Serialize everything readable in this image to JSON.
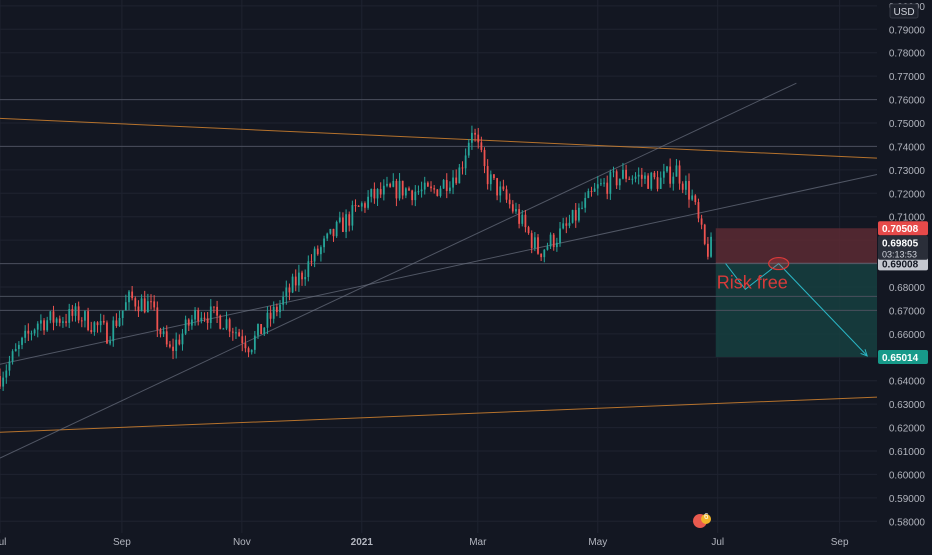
{
  "colors": {
    "background": "#131722",
    "grid": "#1f2330",
    "axis_text": "#b2b5be",
    "up_candle": "#26a69a",
    "down_candle": "#ef5350",
    "trendline_orange": "#c77c2e",
    "trendline_gray": "#6b7180",
    "horizontal_level": "#4a4f5c",
    "stop_zone": "#5c2a33",
    "target_zone": "#16403f",
    "projection_arrow": "#2bb5c4",
    "annotation_red": "#d83a3a"
  },
  "currency_label": "USD",
  "chart_data": {
    "type": "candlestick",
    "title": "",
    "xlabel": "",
    "ylabel": "",
    "ylim": [
      0.575,
      0.8025
    ],
    "y_ticks": [
      "0.58000",
      "0.59000",
      "0.60000",
      "0.61000",
      "0.62000",
      "0.63000",
      "0.64000",
      "0.65000",
      "0.66000",
      "0.67000",
      "0.68000",
      "0.69000",
      "0.70000",
      "0.71000",
      "0.72000",
      "0.73000",
      "0.74000",
      "0.75000",
      "0.76000",
      "0.77000",
      "0.78000",
      "0.79000",
      "0.80000"
    ],
    "x_ticks": [
      {
        "label": "Jul",
        "date": "2020-07-01",
        "bold": false
      },
      {
        "label": "Sep",
        "date": "2020-09-01",
        "bold": false
      },
      {
        "label": "Nov",
        "date": "2020-11-01",
        "bold": false
      },
      {
        "label": "2021",
        "date": "2021-01-01",
        "bold": true
      },
      {
        "label": "Mar",
        "date": "2021-03-01",
        "bold": false
      },
      {
        "label": "May",
        "date": "2021-05-01",
        "bold": false
      },
      {
        "label": "Jul",
        "date": "2021-07-01",
        "bold": false
      },
      {
        "label": "Sep",
        "date": "2021-09-01",
        "bold": false
      }
    ],
    "x_range": [
      "2020-07-01",
      "2021-09-20"
    ],
    "price_path": [
      [
        "2020-07-01",
        0.642
      ],
      [
        "2020-07-20",
        0.665
      ],
      [
        "2020-08-10",
        0.668
      ],
      [
        "2020-08-25",
        0.66
      ],
      [
        "2020-09-05",
        0.675
      ],
      [
        "2020-09-15",
        0.672
      ],
      [
        "2020-09-25",
        0.652
      ],
      [
        "2020-10-10",
        0.67
      ],
      [
        "2020-10-25",
        0.665
      ],
      [
        "2020-11-05",
        0.655
      ],
      [
        "2020-11-20",
        0.672
      ],
      [
        "2020-12-05",
        0.69
      ],
      [
        "2020-12-20",
        0.705
      ],
      [
        "2021-01-05",
        0.718
      ],
      [
        "2021-01-20",
        0.722
      ],
      [
        "2021-02-05",
        0.72
      ],
      [
        "2021-02-20",
        0.73
      ],
      [
        "2021-02-26",
        0.748
      ],
      [
        "2021-03-05",
        0.728
      ],
      [
        "2021-03-20",
        0.712
      ],
      [
        "2021-04-01",
        0.695
      ],
      [
        "2021-04-15",
        0.705
      ],
      [
        "2021-05-01",
        0.722
      ],
      [
        "2021-05-15",
        0.728
      ],
      [
        "2021-06-01",
        0.725
      ],
      [
        "2021-06-10",
        0.73
      ],
      [
        "2021-06-18",
        0.718
      ],
      [
        "2021-06-25",
        0.695
      ],
      [
        "2021-06-29",
        0.698
      ]
    ],
    "current_price": {
      "value": "0.69805",
      "countdown": "03:13:53"
    },
    "price_labels": [
      {
        "value": "0.70508",
        "y": 0.70508,
        "kind": "stop"
      },
      {
        "value": "0.69008",
        "y": 0.69008,
        "kind": "entry"
      },
      {
        "value": "0.65014",
        "y": 0.65014,
        "kind": "target"
      }
    ],
    "horizontal_levels": [
      0.76,
      0.74,
      0.69,
      0.676,
      0.67
    ],
    "trendlines": [
      {
        "color": "orange",
        "from": [
          "2020-07-01",
          0.752
        ],
        "to": [
          "2021-09-20",
          0.735
        ]
      },
      {
        "color": "orange",
        "from": [
          "2020-07-01",
          0.618
        ],
        "to": [
          "2021-09-20",
          0.633
        ]
      },
      {
        "color": "gray",
        "from": [
          "2020-07-01",
          0.647
        ],
        "to": [
          "2021-09-20",
          0.728
        ]
      },
      {
        "color": "gray",
        "from": [
          "2020-07-01",
          0.607
        ],
        "to": [
          "2021-08-10",
          0.767
        ]
      }
    ],
    "position": {
      "start": "2021-06-30",
      "end": "2021-09-20",
      "stop": 0.70508,
      "entry": 0.69008,
      "target": 0.65014,
      "marker": [
        "2021-08-01",
        0.69
      ]
    },
    "projection_path": [
      [
        "2021-07-05",
        0.69
      ],
      [
        "2021-07-15",
        0.679
      ],
      [
        "2021-08-01",
        0.69
      ],
      [
        "2021-09-15",
        0.6506
      ]
    ],
    "annotation": {
      "text": "Risk free",
      "date": "2021-06-30",
      "y": 0.681
    },
    "event_badge": {
      "text": "6",
      "date": "2021-06-22"
    }
  }
}
